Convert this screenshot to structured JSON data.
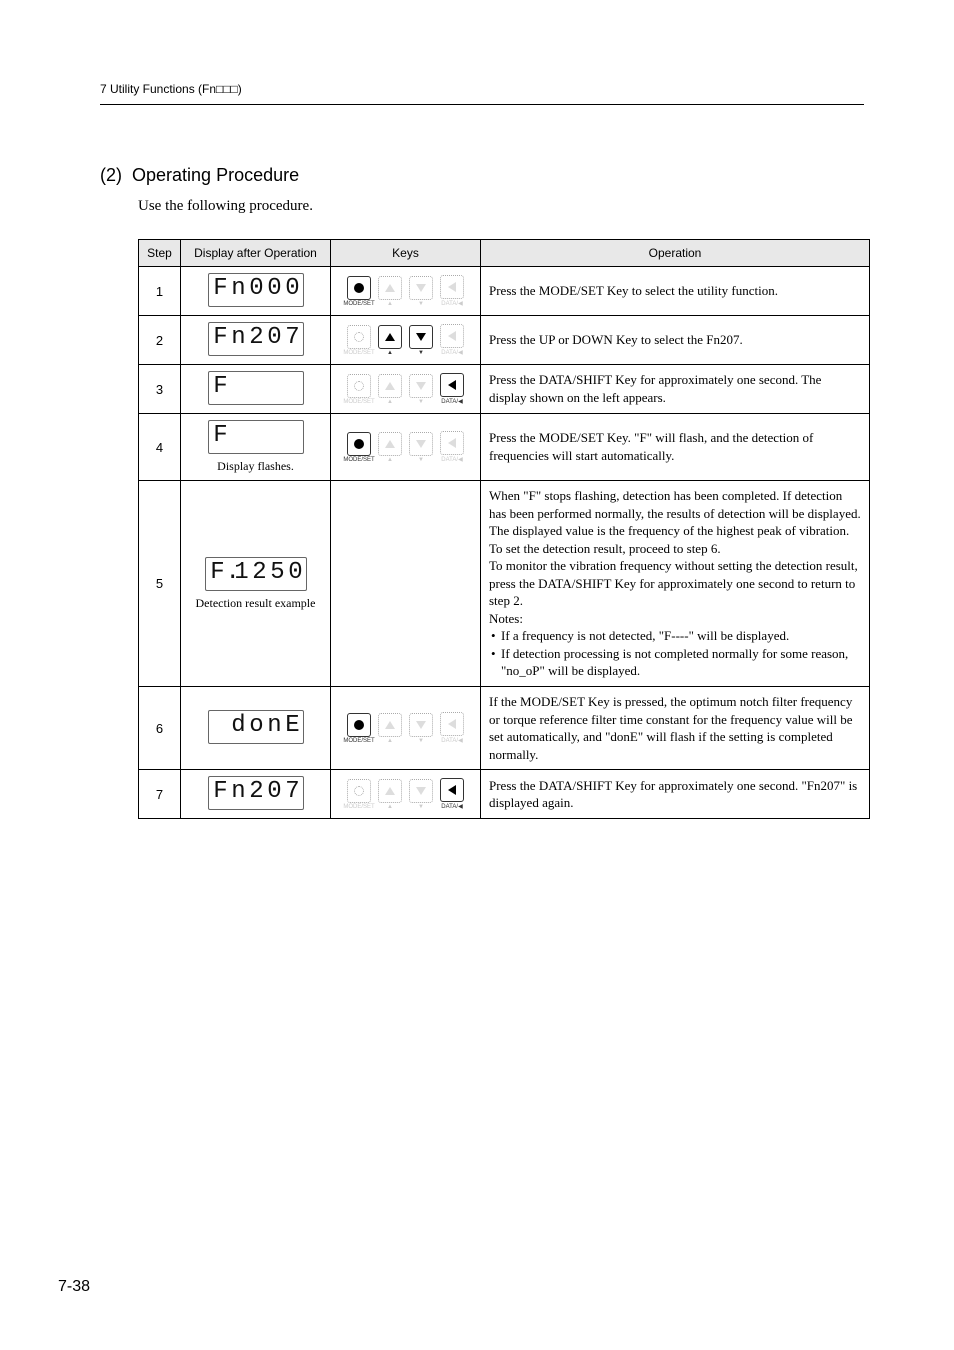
{
  "header": {
    "chapter": "7  Utility Functions (Fn□□□)"
  },
  "section": {
    "number": "(2)",
    "title": "Operating Procedure",
    "intro": "Use the following procedure."
  },
  "table": {
    "headers": {
      "step": "Step",
      "display": "Display after Operation",
      "keys": "Keys",
      "operation": "Operation"
    },
    "rows": [
      {
        "step": "1",
        "seg": "Fn000",
        "keys": {
          "active_set": "mode",
          "labels": [
            "MODE/SET",
            "▲",
            "▼",
            "DATA/◀"
          ]
        },
        "op": "Press the MODE/SET Key to select the utility function."
      },
      {
        "step": "2",
        "seg": "Fn207",
        "keys": {
          "active_set": "updown",
          "labels": [
            "MODE/SET",
            "▲",
            "▼",
            "DATA/◀"
          ]
        },
        "op": "Press the UP or DOWN Key to select the Fn207."
      },
      {
        "step": "3",
        "seg": "F    ",
        "keys": {
          "active_set": "data",
          "labels": [
            "MODE/SET",
            "▲",
            "▼",
            "DATA/◀"
          ]
        },
        "op": "Press the DATA/SHIFT Key for approximately one second. The display shown on the left appears."
      },
      {
        "step": "4",
        "seg": "F    ",
        "caption": "Display flashes.",
        "keys": {
          "active_set": "mode",
          "labels": [
            "MODE/SET",
            "▲",
            "▼",
            "DATA/◀"
          ]
        },
        "op": "Press the MODE/SET Key. \"F\" will flash, and the detection of frequencies will start automatically."
      },
      {
        "step": "5",
        "seg": "F.1250",
        "caption": "Detection result example",
        "keys": {
          "active_set": "none"
        },
        "op_lines": [
          "When \"F\" stops flashing, detection has been completed. If detection has been performed normally, the results of detection will be displayed. The displayed value is the frequency of the highest peak of vibration.",
          "To set the detection result, proceed to step 6.",
          "To monitor the vibration frequency without setting the detection result, press the DATA/SHIFT Key for approximately one second to return to step 2.",
          "Notes:"
        ],
        "op_bullets": [
          "If a frequency is not detected, \"F----\" will be displayed.",
          "If detection processing is not completed normally for some reason, \"no_oP\" will be displayed."
        ]
      },
      {
        "step": "6",
        "seg": " donE",
        "keys": {
          "active_set": "mode",
          "labels": [
            "MODE/SET",
            "▲",
            "▼",
            "DATA/◀"
          ]
        },
        "op": "If the MODE/SET Key is pressed, the optimum notch filter frequency or torque reference filter time constant for the frequency value will be set automatically, and \"donE\" will flash if the setting is completed normally."
      },
      {
        "step": "7",
        "seg": "Fn207",
        "keys": {
          "active_set": "data",
          "labels": [
            "MODE/SET",
            "▲",
            "▼",
            "DATA/◀"
          ]
        },
        "op": "Press the DATA/SHIFT Key for approximately one second. \"Fn207\" is displayed again."
      }
    ]
  },
  "pagenum": "7-38"
}
